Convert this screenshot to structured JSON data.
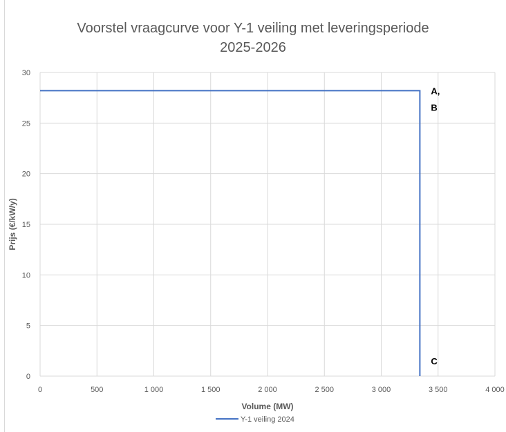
{
  "chart_data": {
    "type": "line",
    "title_lines": [
      "Voorstel vraagcurve voor Y-1 veiling met leveringsperiode",
      "2025-2026"
    ],
    "xlabel": "Volume (MW)",
    "ylabel": "Prijs (€/kW/y)",
    "xlim": [
      0,
      4000
    ],
    "ylim": [
      0,
      30
    ],
    "x_ticks": [
      0,
      500,
      1000,
      1500,
      2000,
      2500,
      3000,
      3500,
      4000
    ],
    "x_tick_labels": [
      "0",
      "500",
      "1 000",
      "1 500",
      "2 000",
      "2 500",
      "3 000",
      "3 500",
      "4 000"
    ],
    "y_ticks": [
      0,
      5,
      10,
      15,
      20,
      25,
      30
    ],
    "y_tick_labels": [
      "0",
      "5",
      "10",
      "15",
      "20",
      "25",
      "30"
    ],
    "grid": true,
    "legend_position": "bottom",
    "series": [
      {
        "name": "Y-1 veiling 2024",
        "color": "#4472c4",
        "x": [
          0,
          3340,
          3340
        ],
        "y": [
          28.2,
          28.2,
          0
        ]
      }
    ],
    "annotations": [
      {
        "lines": [
          "A,",
          "B"
        ],
        "x": 3340,
        "y": 28.2
      },
      {
        "lines": [
          "C"
        ],
        "x": 3340,
        "y": 0
      }
    ]
  }
}
